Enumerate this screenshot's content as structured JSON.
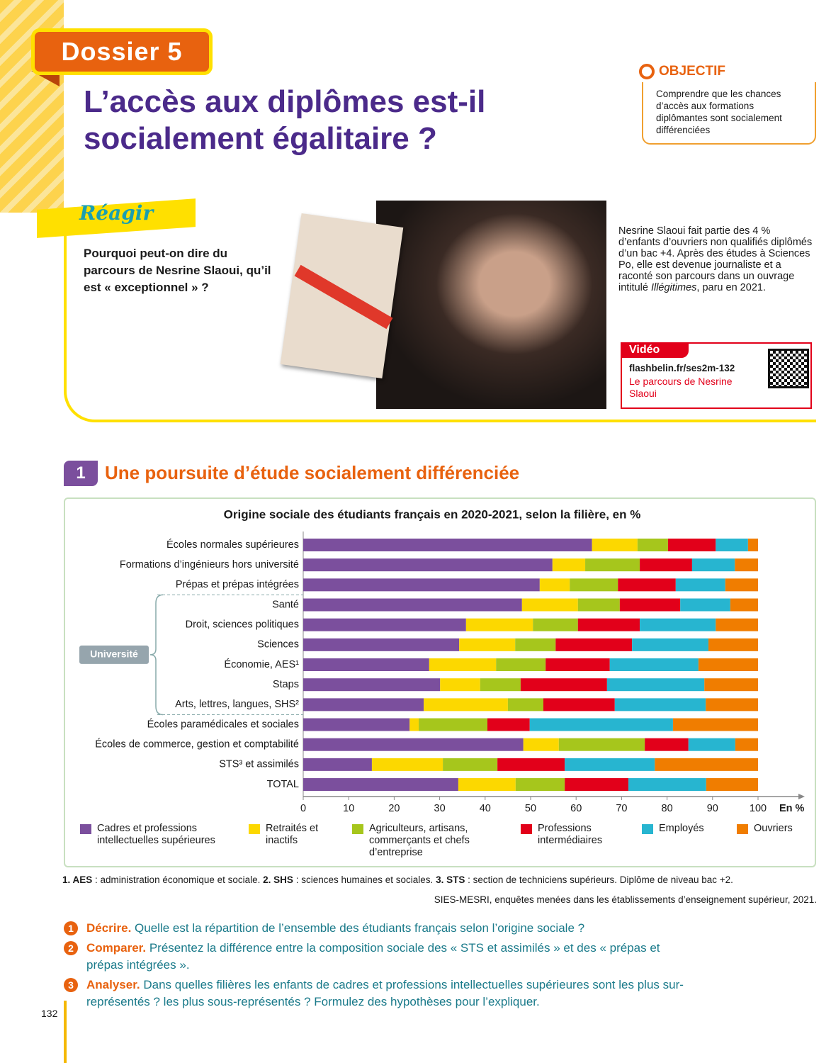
{
  "header": {
    "badge": "Dossier 5",
    "title": "L’accès aux diplômes est-il socialement égalitaire ?"
  },
  "objective": {
    "label": "OBJECTIF",
    "text": "Comprendre que les chances d’accès aux formations diplômantes sont socialement différenciées"
  },
  "reagir": {
    "label": "Réagir",
    "question": "Pourquoi peut-on dire du parcours de Nesrine Slaoui, qu’il est « exceptionnel » ?"
  },
  "caption": {
    "before": "Nesrine Slaoui fait partie des 4 % d’enfants d’ouvriers non qualifiés diplômés d’un bac +4. Après des études à Sciences Po, elle est devenue journaliste et a raconté son parcours dans un ouvrage intitulé ",
    "italic": "Illégitimes",
    "after": ", paru en 2021."
  },
  "video": {
    "label": "Vidéo",
    "url": "flashbelin.fr/ses2m-132",
    "title": "Le parcours de Nesrine Slaoui"
  },
  "section": {
    "number": "1",
    "title": "Une poursuite d’étude socialement différenciée"
  },
  "chart_data": {
    "type": "stacked-bar-horizontal",
    "title": "Origine sociale des étudiants français en 2020-2021, selon la filière, en %",
    "xlabel": "En %",
    "group_label": "Université",
    "categories": [
      "Écoles normales supérieures",
      "Formations d’ingénieurs hors université",
      "Prépas et prépas intégrées",
      "Santé",
      "Droit, sciences politiques",
      "Sciences",
      "Économie, AES¹",
      "Staps",
      "Arts, lettres, langues, SHS²",
      "Écoles paramédicales et sociales",
      "Écoles de commerce, gestion et comptabilité",
      "STS³ et assimilés",
      "TOTAL"
    ],
    "series": [
      {
        "name": "Cadres et professions intellectuelles supérieures",
        "color": "#7b4f9d",
        "values": [
          63.5,
          54.8,
          52.0,
          48.1,
          35.8,
          34.3,
          27.7,
          30.1,
          26.5,
          23.4,
          48.4,
          15.1,
          34.1
        ]
      },
      {
        "name": "Retraités et inactifs",
        "color": "#fcd800",
        "values": [
          10.0,
          7.2,
          6.6,
          12.3,
          14.7,
          12.3,
          14.7,
          8.8,
          18.5,
          2.0,
          7.8,
          15.6,
          12.6
        ]
      },
      {
        "name": "Agriculteurs, artisans, commerçants et chefs d’entreprise",
        "color": "#a6c61c",
        "values": [
          6.7,
          12.0,
          10.6,
          9.2,
          9.9,
          8.9,
          10.9,
          8.9,
          7.8,
          15.1,
          18.9,
          12.0,
          10.8
        ]
      },
      {
        "name": "Professions intermédiaires",
        "color": "#e2001a",
        "values": [
          10.5,
          11.5,
          12.7,
          13.3,
          13.6,
          16.8,
          14.1,
          19.0,
          15.7,
          9.3,
          9.6,
          14.8,
          14.0
        ]
      },
      {
        "name": "Employés",
        "color": "#27b5d0",
        "values": [
          7.1,
          9.4,
          10.9,
          11.0,
          16.7,
          16.8,
          19.5,
          21.4,
          20.0,
          31.5,
          10.3,
          19.8,
          17.1
        ]
      },
      {
        "name": "Ouvriers",
        "color": "#f07d00",
        "values": [
          2.2,
          5.1,
          7.2,
          6.1,
          9.3,
          10.9,
          13.1,
          11.8,
          11.5,
          18.7,
          5.0,
          22.7,
          11.4
        ]
      }
    ],
    "xlim": [
      0,
      100
    ],
    "xticks": [
      0,
      10,
      20,
      30,
      40,
      50,
      60,
      70,
      80,
      90,
      100
    ]
  },
  "notes": [
    {
      "term": "1. AES",
      "text": " : administration économique et sociale. "
    },
    {
      "term": "2. SHS",
      "text": " : sciences humaines et sociales. "
    },
    {
      "term": "3. STS",
      "text": " : section de techniciens supérieurs. Diplôme de niveau bac +2."
    }
  ],
  "source": "SIES-MESRI, enquêtes menées dans les établissements d’enseignement supérieur, 2021.",
  "questions": [
    {
      "number": "1",
      "verb": "Décrire.",
      "text": " Quelle est la répartition de l’ensemble des étudiants français selon l’origine sociale ?"
    },
    {
      "number": "2",
      "verb": "Comparer.",
      "text": " Présentez la différence entre la composition sociale des « STS et assimilés » et des « prépas et prépas intégrées »."
    },
    {
      "number": "3",
      "verb": "Analyser.",
      "text": " Dans quelles filières les enfants de cadres et professions intellectuelles supérieures sont les plus sur-représentés ? les plus sous-représentés ? Formulez des hypothèses pour l’expliquer."
    }
  ],
  "page_number": "132"
}
